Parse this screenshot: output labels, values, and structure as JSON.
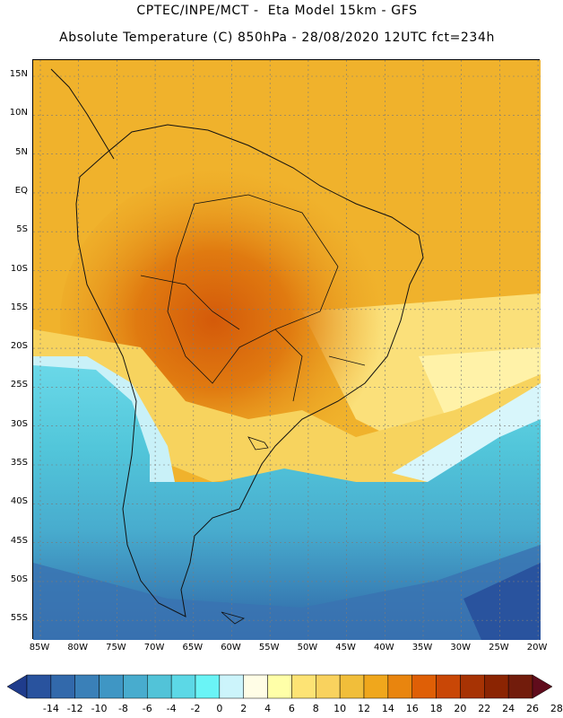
{
  "header": {
    "line1": "CPTEC/INPE/MCT -  Eta Model 15km - GFS",
    "line2": "Absolute Temperature (C) 850hPa - 28/08/2020 12UTC fct=234h"
  },
  "map": {
    "lat_labels": [
      "15N",
      "10N",
      "5N",
      "EQ",
      "5S",
      "10S",
      "15S",
      "20S",
      "25S",
      "30S",
      "35S",
      "40S",
      "45S",
      "50S",
      "55S"
    ],
    "lon_labels": [
      "85W",
      "80W",
      "75W",
      "70W",
      "65W",
      "60W",
      "55W",
      "50W",
      "45W",
      "40W",
      "35W",
      "30W",
      "25W",
      "20W"
    ],
    "variable": "Absolute Temperature (C)",
    "level": "850hPa",
    "region": "South America"
  },
  "colorbar": {
    "labels": [
      "-14",
      "-12",
      "-10",
      "-8",
      "-6",
      "-4",
      "-2",
      "0",
      "2",
      "4",
      "6",
      "8",
      "10",
      "12",
      "14",
      "16",
      "18",
      "20",
      "22",
      "24",
      "26",
      "28"
    ],
    "colors": [
      "#1f3c8c",
      "#29539e",
      "#3269ab",
      "#3a80b8",
      "#3f96c4",
      "#48acce",
      "#52c3d8",
      "#5cd8e6",
      "#6af4f6",
      "#ccf4fb",
      "#fffde6",
      "#ffffa8",
      "#fde374",
      "#f9d25e",
      "#f1be3a",
      "#f0a71c",
      "#e9850e",
      "#df5f06",
      "#c94706",
      "#a73304",
      "#8b2402",
      "#721c0c",
      "#600c1c"
    ]
  }
}
